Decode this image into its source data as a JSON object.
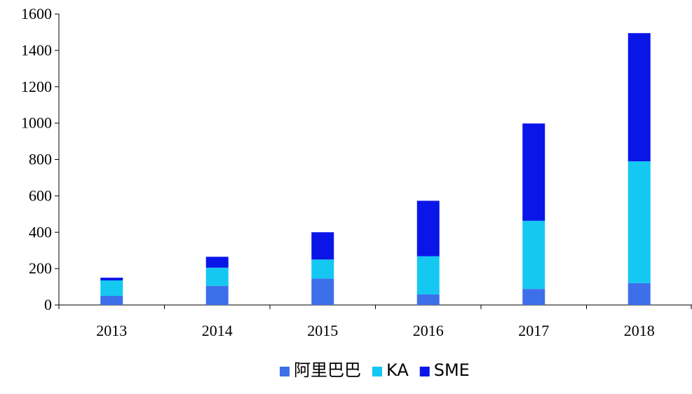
{
  "chart_data": {
    "type": "bar",
    "stacked": true,
    "categories": [
      "2013",
      "2014",
      "2015",
      "2016",
      "2017",
      "2018"
    ],
    "series": [
      {
        "name": "阿里巴巴",
        "color": "#3e6fea",
        "values": [
          50,
          105,
          145,
          58,
          88,
          120
        ]
      },
      {
        "name": "KA",
        "color": "#15c8f2",
        "values": [
          85,
          100,
          105,
          210,
          375,
          670
        ]
      },
      {
        "name": "SME",
        "color": "#0a16e8",
        "values": [
          15,
          60,
          150,
          305,
          535,
          705
        ]
      }
    ],
    "ylim": [
      0,
      1600
    ],
    "yticks": [
      "0",
      "200",
      "400",
      "600",
      "800",
      "1000",
      "1200",
      "1400",
      "1600"
    ],
    "grid": false,
    "legend_position": "bottom-center"
  }
}
